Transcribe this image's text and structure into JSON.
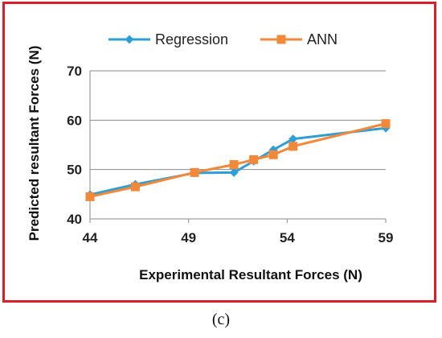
{
  "chart_data": {
    "type": "line",
    "xlabel": "Experimental Resultant Forces (N)",
    "ylabel": "Predicted resultant Forces (N)",
    "xlim": [
      44,
      59
    ],
    "ylim": [
      40,
      70
    ],
    "xticks": [
      44,
      49,
      54,
      59
    ],
    "yticks": [
      40,
      50,
      60,
      70
    ],
    "grid": "horizontal",
    "legend": "top",
    "series": [
      {
        "name": "Regression",
        "color": "#2e9fd6",
        "marker": "diamond",
        "x": [
          44.0,
          46.3,
          49.3,
          51.3,
          52.3,
          53.3,
          54.3,
          59.0
        ],
        "y": [
          44.9,
          47.0,
          49.3,
          49.4,
          51.7,
          54.0,
          56.2,
          58.4
        ]
      },
      {
        "name": "ANN",
        "color": "#f2893a",
        "marker": "square",
        "x": [
          44.0,
          46.3,
          49.3,
          51.3,
          52.3,
          53.3,
          54.3,
          59.0
        ],
        "y": [
          44.5,
          46.5,
          49.4,
          51.0,
          52.0,
          53.0,
          54.7,
          59.3
        ]
      }
    ]
  },
  "caption": "(c)"
}
